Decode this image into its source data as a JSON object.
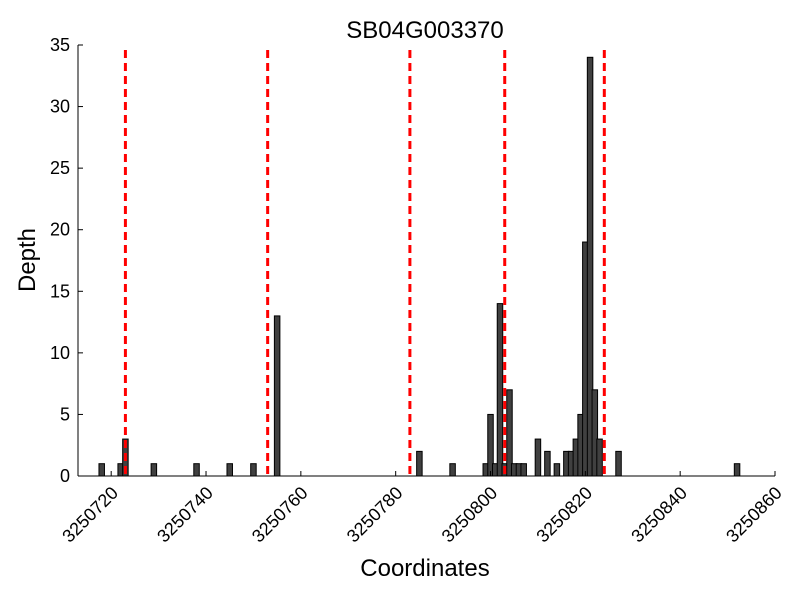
{
  "chart_data": {
    "type": "bar",
    "title": "SB04G003370",
    "xlabel": "Coordinates",
    "ylabel": "Depth",
    "xlim": [
      3250713,
      3250860
    ],
    "ylim": [
      0,
      35
    ],
    "xticks": [
      3250720,
      3250740,
      3250760,
      3250780,
      3250800,
      3250820,
      3250840,
      3250860
    ],
    "xtick_labels": [
      "3250720",
      "3250740",
      "3250760",
      "3250780",
      "3250800",
      "3250820",
      "3250840",
      "3250860"
    ],
    "yticks": [
      0,
      5,
      10,
      15,
      20,
      25,
      30,
      35
    ],
    "ytick_labels": [
      "0",
      "5",
      "10",
      "15",
      "20",
      "25",
      "30",
      "35"
    ],
    "bar_color": "#404040",
    "bar_edge_color": "#000000",
    "marker_color": "#ff0000",
    "grid": false,
    "series": [
      {
        "x": [
          3250718,
          3250722,
          3250723,
          3250729,
          3250738,
          3250745,
          3250750,
          3250755,
          3250785,
          3250792,
          3250799,
          3250800,
          3250801,
          3250802,
          3250803,
          3250804,
          3250805,
          3250806,
          3250807,
          3250810,
          3250812,
          3250814,
          3250816,
          3250817,
          3250818,
          3250819,
          3250820,
          3250821,
          3250822,
          3250823,
          3250827,
          3250852
        ],
        "values": [
          1,
          1,
          3,
          1,
          1,
          1,
          1,
          13,
          2,
          1,
          1,
          5,
          1,
          14,
          1,
          7,
          1,
          1,
          1,
          3,
          2,
          1,
          2,
          2,
          3,
          5,
          19,
          34,
          7,
          3,
          2,
          1
        ]
      }
    ],
    "vertical_markers": [
      3250723,
      3250753,
      3250783,
      3250803,
      3250824
    ]
  }
}
